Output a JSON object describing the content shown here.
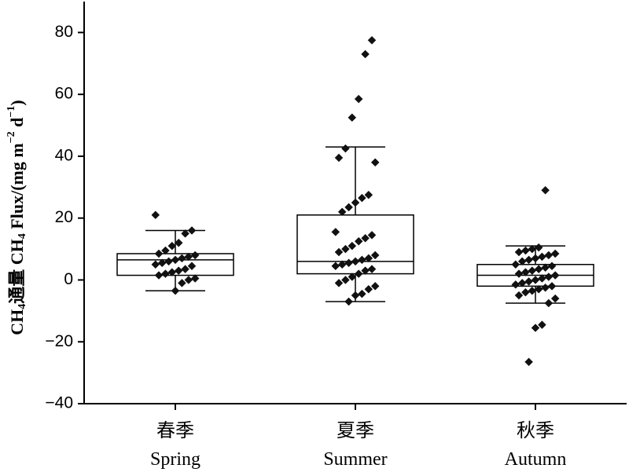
{
  "chart_data": {
    "type": "box",
    "ylabel": {
      "cn_prefix": "CH",
      "cn_sub": "4",
      "cn_text": "通量 ",
      "en_prefix": "CH",
      "en_sub": "4",
      "en_text": " Flux/(mg m",
      "en_sup1": "−2",
      "en_mid": " d",
      "en_sup2": "−1",
      "en_end": ")"
    },
    "ylim": [
      -40,
      90
    ],
    "yticks": [
      -40,
      -20,
      0,
      20,
      40,
      60,
      80
    ],
    "ytick_labels": [
      "−40",
      "−20",
      "0",
      "20",
      "40",
      "60",
      "80"
    ],
    "categories": [
      {
        "cn": "春季",
        "en": "Spring"
      },
      {
        "cn": "夏季",
        "en": "Summer"
      },
      {
        "cn": "秋季",
        "en": "Autumn"
      }
    ],
    "boxes": [
      {
        "whisker_low": -3.5,
        "q1": 1.5,
        "median": 6.5,
        "q3": 8.5,
        "whisker_high": 16,
        "points": [
          21,
          16,
          15,
          12,
          11,
          9.5,
          8.5,
          8,
          7.5,
          7,
          6.5,
          6,
          5.5,
          5,
          4.5,
          3.5,
          3,
          2.5,
          2,
          1.5,
          0.5,
          0,
          -1,
          -3.5
        ]
      },
      {
        "whisker_low": -7,
        "q1": 2,
        "median": 6,
        "q3": 21,
        "whisker_high": 43,
        "points": [
          77.5,
          73,
          58.5,
          52.5,
          42.5,
          39.5,
          38,
          27.5,
          26.5,
          25,
          23.5,
          22,
          15.5,
          14.5,
          13.5,
          12.5,
          11,
          10,
          9,
          8,
          7,
          6.5,
          6,
          5.5,
          5,
          4.5,
          3.5,
          3,
          2,
          1,
          0,
          -1,
          -2,
          -3,
          -4.5,
          -5,
          -7
        ]
      },
      {
        "whisker_low": -7.5,
        "q1": -2,
        "median": 1.5,
        "q3": 5,
        "whisker_high": 11,
        "points": [
          29,
          10.5,
          10,
          9.5,
          9,
          8.5,
          8,
          7.5,
          7,
          6.5,
          6,
          5,
          4.5,
          4,
          3.5,
          3,
          2.5,
          2,
          1.5,
          1,
          0.5,
          0,
          -0.5,
          -1,
          -1.5,
          -2,
          -2.5,
          -3,
          -3.5,
          -4,
          -5,
          -6,
          -7.5,
          -14.5,
          -15.5,
          -26.5
        ]
      }
    ]
  }
}
